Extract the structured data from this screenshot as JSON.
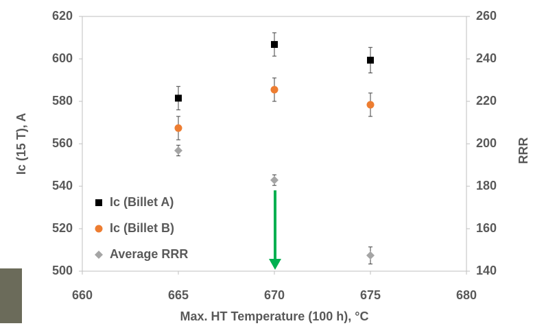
{
  "chart_data": {
    "type": "scatter",
    "xlabel": "Max. HT Temperature (100 h), °C",
    "ylabel": "Ic (15 T), A",
    "y2label": "RRR",
    "x": [
      665,
      670,
      675
    ],
    "xlim": [
      660,
      680
    ],
    "xticks": [
      660,
      665,
      670,
      675,
      680
    ],
    "ylim": [
      500,
      620
    ],
    "yticks": [
      500,
      520,
      540,
      560,
      580,
      600,
      620
    ],
    "y2lim": [
      140,
      260
    ],
    "y2ticks": [
      140,
      160,
      180,
      200,
      220,
      240,
      260
    ],
    "legend": "lower left",
    "series": [
      {
        "name": "Ic (Billet A)",
        "color": "#000000",
        "marker": "square",
        "values": [
          581.5,
          606.8,
          599.4
        ],
        "errors": [
          5.5,
          5.5,
          6
        ]
      },
      {
        "name": "Ic (Billet B)",
        "color": "#ed7d31",
        "marker": "circle",
        "values": [
          567.4,
          585.5,
          578.4
        ],
        "errors": [
          5.5,
          5.5,
          5.5
        ]
      },
      {
        "name": "Average RRR",
        "color": "#a5a5a5",
        "marker": "diamond",
        "axis": "y2",
        "values": [
          196.8,
          182.9,
          147.4
        ],
        "errors": [
          2.5,
          2.5,
          4
        ]
      }
    ]
  }
}
